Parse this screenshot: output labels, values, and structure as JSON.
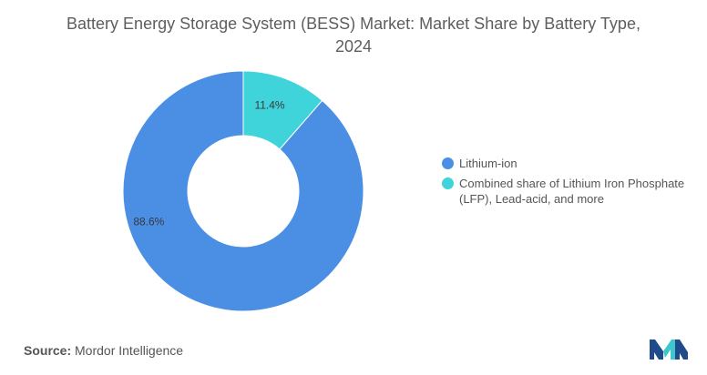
{
  "title": "Battery Energy Storage System (BESS) Market: Market Share by Battery Type, 2024",
  "source": {
    "label": "Source:",
    "text": "Mordor Intelligence"
  },
  "logo": {
    "icon": "mordor-intelligence-logo",
    "colors": [
      "#1f4b8a",
      "#3ec6cf"
    ]
  },
  "chart_data": {
    "type": "pie",
    "style": "donut",
    "slices": [
      {
        "label": "Combined share of Lithium Iron Phosphate (LFP), Lead-acid, and more",
        "value": 11.4,
        "display": "11.4%",
        "color": "#3fd3da"
      },
      {
        "label": "Lithium-ion",
        "value": 88.6,
        "display": "88.6%",
        "color": "#4a8fe3"
      }
    ],
    "legend": [
      {
        "label": "Lithium-ion",
        "color": "#4a8fe3"
      },
      {
        "label": "Combined share of Lithium Iron Phosphate (LFP), Lead-acid, and more",
        "color": "#3fd3da"
      }
    ],
    "legend_position": "right"
  }
}
